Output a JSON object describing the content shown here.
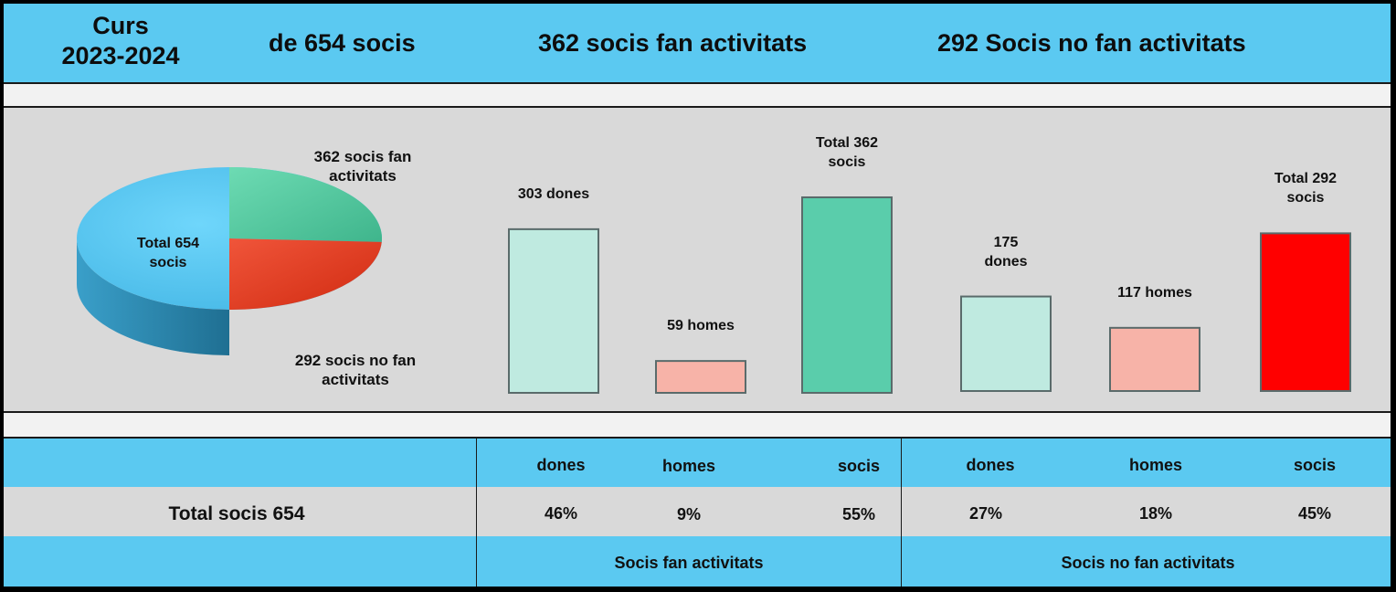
{
  "header": {
    "course_line1": "Curs",
    "course_line2": "2023-2024",
    "total": "de 654 socis",
    "active": "362 socis fan activitats",
    "inactive": "292 Socis no fan activitats"
  },
  "colors": {
    "header_bg": "#5bc9f1",
    "pie_total": "#5bc9f1",
    "pie_active": "#5fd3a9",
    "pie_inactive": "#e8321e",
    "bar_women": "#bfeae0",
    "bar_men": "#f7b3a8",
    "bar_active_total": "#5acdab",
    "bar_inactive_total": "#ff0000"
  },
  "chart_data": [
    {
      "type": "pie",
      "labels": [
        "362 socis fan activitats",
        "292 socis no fan activitats"
      ],
      "values": [
        362,
        292
      ],
      "center_label_line1": "Total 654",
      "center_label_line2": "socis",
      "slice_label_active_line1": "362 socis fan",
      "slice_label_active_line2": "activitats",
      "slice_label_inactive_line1": "292 socis no fan",
      "slice_label_inactive_line2": "activitats"
    },
    {
      "type": "bar",
      "categories": [
        "dones",
        "homes",
        "socis",
        "dones",
        "homes",
        "socis"
      ],
      "values": [
        303,
        59,
        362,
        175,
        117,
        292
      ],
      "labels": [
        [
          "303 dones"
        ],
        [
          "59 homes"
        ],
        [
          "Total 362",
          "socis"
        ],
        [
          "175",
          "dones"
        ],
        [
          "117 homes"
        ],
        [
          "Total  292",
          "socis"
        ]
      ],
      "colors": [
        "#bfeae0",
        "#f7b3a8",
        "#5acdab",
        "#bfeae0",
        "#f7b3a8",
        "#ff0000"
      ]
    }
  ],
  "table": {
    "headers": [
      "dones",
      "homes",
      "socis",
      "dones",
      "homes",
      "socis"
    ],
    "row_label": "Total  socis 654",
    "values": [
      "46%",
      "9%",
      "55%",
      "27%",
      "18%",
      "45%"
    ],
    "group_active": "Socis fan activitats",
    "group_inactive": "Socis no fan activitats"
  }
}
